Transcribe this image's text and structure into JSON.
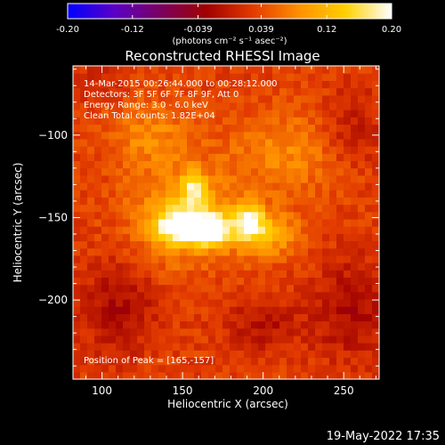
{
  "colorbar": {
    "tick_labels": [
      "-0.20",
      "-0.12",
      "-0.039",
      "0.039",
      "0.12",
      "0.20"
    ],
    "unit_label": "(photons cm⁻² s⁻¹ asec⁻²)",
    "min": -0.2,
    "max": 0.2,
    "colormap": [
      "#0000ff",
      "#5a00c8",
      "#7a0060",
      "#a00000",
      "#e23a00",
      "#ff9000",
      "#ffd000",
      "#ffffff"
    ]
  },
  "chart_data": {
    "type": "heatmap",
    "title": "Reconstructed RHESSI Image",
    "xlabel": "Heliocentric X (arcsec)",
    "ylabel": "Heliocentric Y (arcsec)",
    "xlim": [
      82,
      272
    ],
    "ylim": [
      -248,
      -58
    ],
    "x_ticks": [
      100,
      150,
      200,
      250
    ],
    "y_ticks": [
      -100,
      -150,
      -200
    ],
    "info_lines": [
      "14-Mar-2015 00:26:44.000 to 00:28:12.000",
      "Detectors: 3F 5F 6F 7F 8F 9F, Att 0",
      "Energy Range: 3.0 - 6.0 keV",
      "Clean     Total counts: 1.82E+04"
    ],
    "peak_label": "Position of Peak = [165,-157]",
    "peak_position": [
      165,
      -157
    ],
    "sources": [
      {
        "x": 167,
        "y": -157,
        "sigma_x": 8,
        "sigma_y": 6,
        "amplitude": 0.2
      },
      {
        "x": 148,
        "y": -155,
        "sigma_x": 9,
        "sigma_y": 6,
        "amplitude": 0.16
      },
      {
        "x": 152,
        "y": -150,
        "sigma_x": 22,
        "sigma_y": 18,
        "amplitude": 0.1
      },
      {
        "x": 191,
        "y": -153,
        "sigma_x": 7,
        "sigma_y": 8,
        "amplitude": 0.14
      },
      {
        "x": 157,
        "y": -132,
        "sigma_x": 5,
        "sigma_y": 8,
        "amplitude": 0.1
      },
      {
        "x": 205,
        "y": -160,
        "sigma_x": 14,
        "sigma_y": 10,
        "amplitude": 0.07
      },
      {
        "x": 130,
        "y": -100,
        "sigma_x": 20,
        "sigma_y": 16,
        "amplitude": 0.05
      },
      {
        "x": 215,
        "y": -110,
        "sigma_x": 25,
        "sigma_y": 18,
        "amplitude": 0.05
      },
      {
        "x": 110,
        "y": -205,
        "sigma_x": 16,
        "sigma_y": 20,
        "amplitude": -0.05
      },
      {
        "x": 255,
        "y": -205,
        "sigma_x": 16,
        "sigma_y": 22,
        "amplitude": -0.05
      },
      {
        "x": 200,
        "y": -215,
        "sigma_x": 18,
        "sigma_y": 12,
        "amplitude": -0.04
      },
      {
        "x": 255,
        "y": -95,
        "sigma_x": 14,
        "sigma_y": 16,
        "amplitude": -0.04
      },
      {
        "x": 100,
        "y": -70,
        "sigma_x": 10,
        "sigma_y": 8,
        "amplitude": -0.03
      }
    ]
  },
  "footer": {
    "timestamp": "19-May-2022 17:35"
  }
}
